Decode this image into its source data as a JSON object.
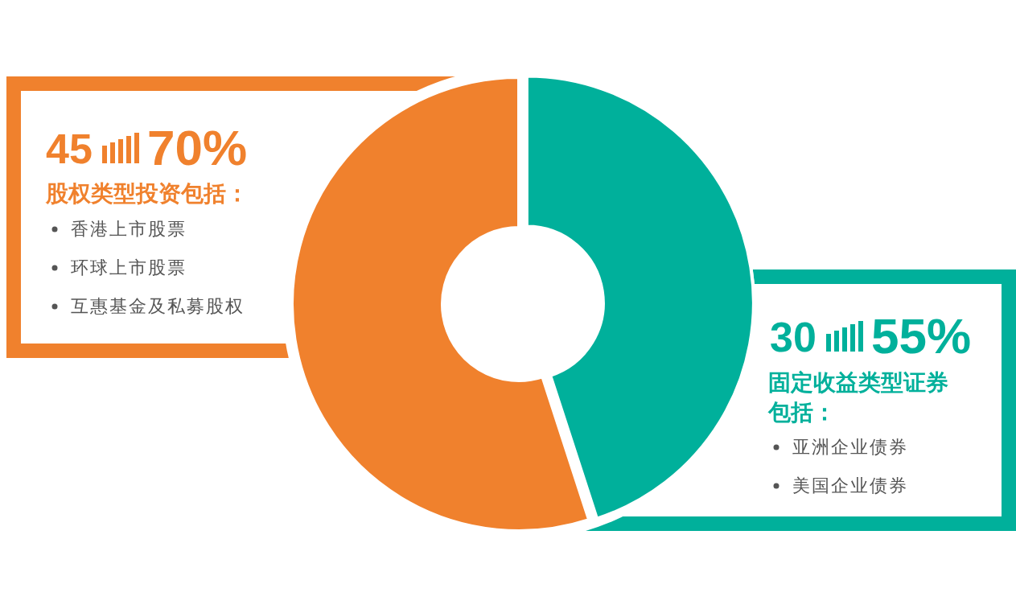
{
  "chart_data": {
    "type": "donut",
    "categories": [
      "固定收益类型证券包括",
      "股权类型投资包括"
    ],
    "values": [
      45,
      55
    ],
    "colors": [
      "#00b09b",
      "#f0812d"
    ],
    "annotations": [
      "45",
      "70%",
      "香港上市股票",
      "环球上市股票",
      "互惠基金及私募股权",
      "30",
      "55%",
      "亚洲企业债券",
      "美国企业债券",
      "：",
      "："
    ]
  }
}
